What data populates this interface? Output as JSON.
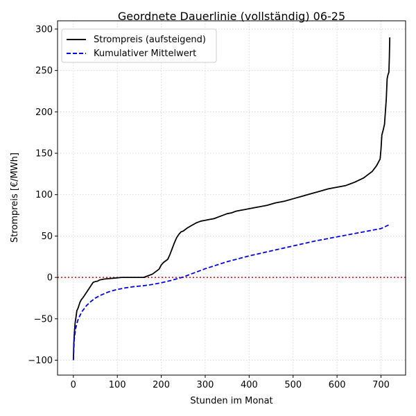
{
  "chart_data": {
    "type": "line",
    "title": "Geordnete Dauerlinie (vollständig) 06-25",
    "xlabel": "Stunden im Monat",
    "ylabel": "Strompreis [€/MWh]",
    "xlim": [
      -36,
      756
    ],
    "ylim": [
      -118,
      310
    ],
    "xticks": [
      0,
      100,
      200,
      300,
      400,
      500,
      600,
      700
    ],
    "yticks": [
      -100,
      -50,
      0,
      50,
      100,
      150,
      200,
      250,
      300
    ],
    "grid": true,
    "legend_position": "top-left",
    "reference_line": {
      "y": 0,
      "color": "#dd0000",
      "style": "dotted"
    },
    "series": [
      {
        "name": "Strompreis (aufsteigend)",
        "color": "#000000",
        "style": "solid",
        "x": [
          0,
          1,
          2,
          3,
          4,
          6,
          8,
          10,
          12,
          15,
          18,
          21,
          25,
          30,
          35,
          40,
          45,
          50,
          55,
          60,
          70,
          80,
          90,
          100,
          110,
          120,
          130,
          140,
          150,
          160,
          170,
          180,
          185,
          190,
          195,
          200,
          205,
          210,
          215,
          220,
          225,
          230,
          235,
          240,
          245,
          250,
          255,
          260,
          270,
          280,
          290,
          300,
          310,
          320,
          330,
          340,
          350,
          360,
          370,
          380,
          390,
          400,
          420,
          440,
          460,
          480,
          500,
          520,
          540,
          560,
          580,
          600,
          620,
          640,
          660,
          680,
          690,
          695,
          698,
          700,
          702,
          705,
          708,
          710,
          712,
          714,
          716,
          718,
          719,
          720
        ],
        "values": [
          -100,
          -80,
          -70,
          -62,
          -55,
          -48,
          -40,
          -38,
          -35,
          -30,
          -27,
          -25,
          -22,
          -18,
          -14,
          -10,
          -6,
          -5,
          -4.5,
          -3,
          -2,
          -1.5,
          -1,
          -0.5,
          0,
          0,
          0,
          0,
          0,
          0,
          2,
          4,
          6,
          8,
          10,
          15,
          18,
          20,
          22,
          28,
          35,
          42,
          48,
          52,
          55,
          56,
          58,
          60,
          63,
          66,
          68,
          69,
          70,
          71,
          73,
          75,
          77,
          78,
          80,
          81,
          82,
          83,
          85,
          87,
          90,
          92,
          95,
          98,
          101,
          104,
          107,
          109,
          111,
          115,
          120,
          128,
          135,
          140,
          143,
          155,
          172,
          178,
          185,
          200,
          215,
          240,
          245,
          248,
          265,
          290
        ]
      },
      {
        "name": "Kumulativer Mittelwert",
        "color": "#0000ee",
        "style": "dashed",
        "x": [
          0,
          2,
          5,
          10,
          15,
          20,
          30,
          40,
          50,
          60,
          80,
          100,
          120,
          140,
          160,
          180,
          200,
          220,
          240,
          250,
          260,
          280,
          300,
          350,
          400,
          450,
          500,
          550,
          600,
          650,
          700,
          720
        ],
        "values": [
          -100,
          -75,
          -62,
          -52,
          -46,
          -41,
          -34,
          -29,
          -25,
          -22,
          -17.5,
          -14.5,
          -12.5,
          -11,
          -10,
          -8.5,
          -6.5,
          -4,
          -1,
          0.5,
          2.5,
          6.5,
          10.5,
          19,
          26,
          32,
          38,
          44,
          49,
          54,
          59,
          64
        ]
      }
    ]
  }
}
